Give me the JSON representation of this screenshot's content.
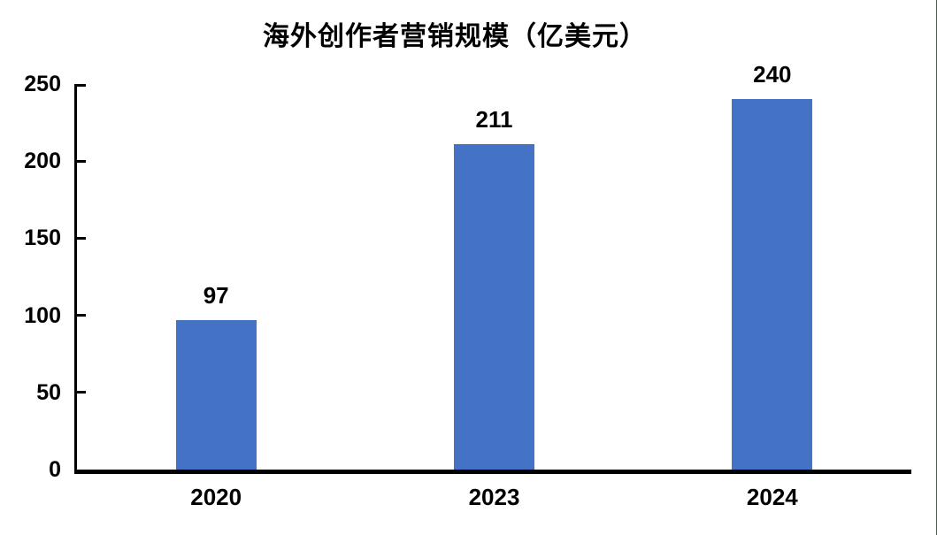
{
  "chart_data": {
    "type": "bar",
    "title": "海外创作者营销规模（亿美元）",
    "categories": [
      "2020",
      "2023",
      "2024"
    ],
    "values": [
      97,
      211,
      240
    ],
    "data_labels": [
      "97",
      "211",
      "240"
    ],
    "xlabel": "",
    "ylabel": "",
    "ylim": [
      0,
      250
    ],
    "yticks": [
      0,
      50,
      100,
      150,
      200,
      250
    ],
    "grid": false,
    "legend_position": "none",
    "bar_width_frac": 0.29,
    "colors": {
      "bar": "#4472C4",
      "axis": "#000000",
      "text": "#000000",
      "background": "#ffffff",
      "page_edge_line": "#4a614f"
    }
  }
}
